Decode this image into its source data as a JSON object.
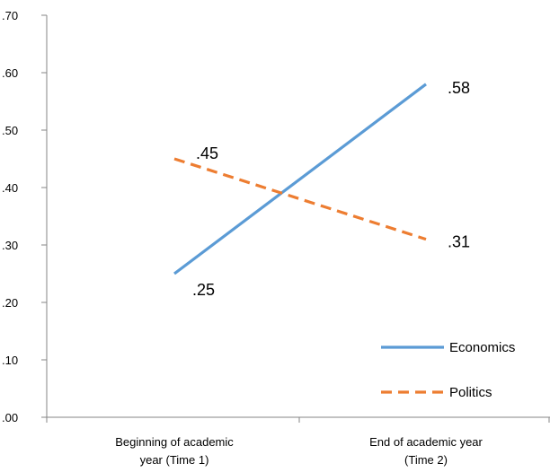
{
  "chart_data": {
    "type": "line",
    "categories": [
      [
        "Beginning of academic",
        "year (Time 1)"
      ],
      [
        "End of academic year",
        "(Time 2)"
      ]
    ],
    "ylim": [
      0,
      0.7
    ],
    "yticks": [
      ".00",
      ".10",
      ".20",
      ".30",
      ".40",
      ".50",
      ".60",
      ".70"
    ],
    "yticks_values": [
      0,
      0.1,
      0.2,
      0.3,
      0.4,
      0.5,
      0.6,
      0.7
    ],
    "grid": false,
    "legend_position": "bottom-right",
    "series": [
      {
        "name": "Economics",
        "values": [
          0.25,
          0.58
        ],
        "labels": [
          ".25",
          ".58"
        ],
        "color": "#5B9BD5",
        "style": "solid"
      },
      {
        "name": "Politics",
        "values": [
          0.45,
          0.31
        ],
        "labels": [
          ".45",
          ".31"
        ],
        "color": "#ED7D31",
        "style": "dashed"
      }
    ]
  }
}
